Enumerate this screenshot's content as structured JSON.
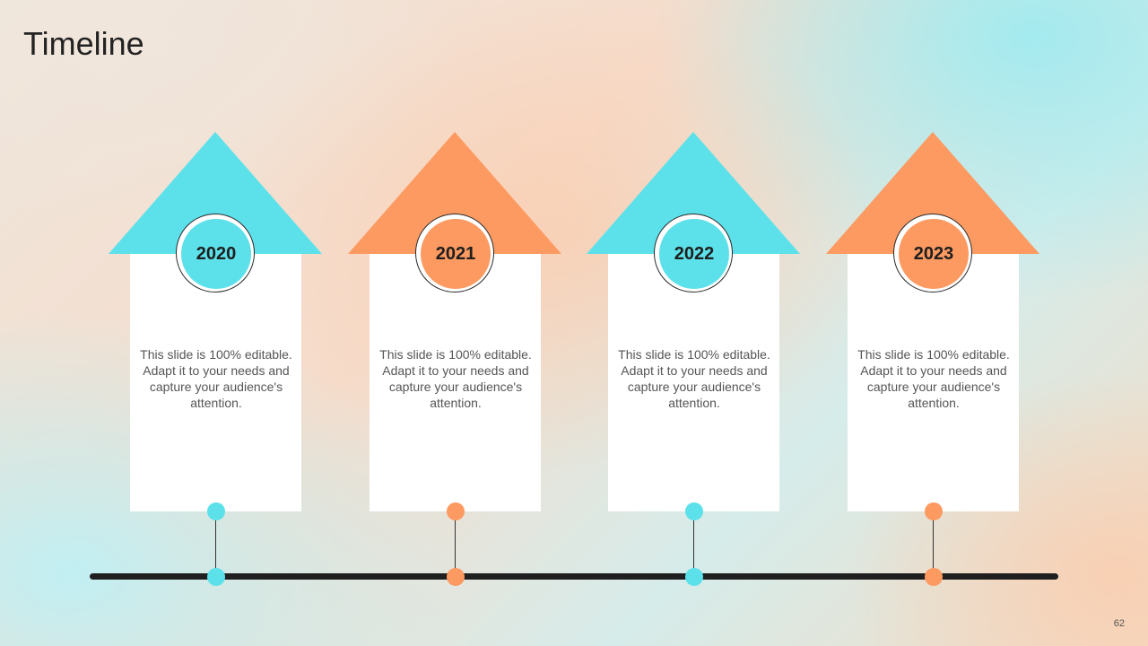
{
  "title": "Timeline",
  "page_number": "62",
  "colors": {
    "cyan": "#5ce1ea",
    "orange": "#fd9a61",
    "baseline": "#1f1f1f"
  },
  "milestones": [
    {
      "year": "2020",
      "color": "cyan",
      "description": "This slide is 100% editable. Adapt it to your needs and capture your audience's attention."
    },
    {
      "year": "2021",
      "color": "orange",
      "description": "This slide is 100% editable. Adapt it to your needs and capture your audience's attention."
    },
    {
      "year": "2022",
      "color": "cyan",
      "description": "This slide is 100% editable. Adapt it to your needs and capture your audience's attention."
    },
    {
      "year": "2023",
      "color": "orange",
      "description": "This slide is 100% editable. Adapt it to your needs and capture your audience's attention."
    }
  ]
}
